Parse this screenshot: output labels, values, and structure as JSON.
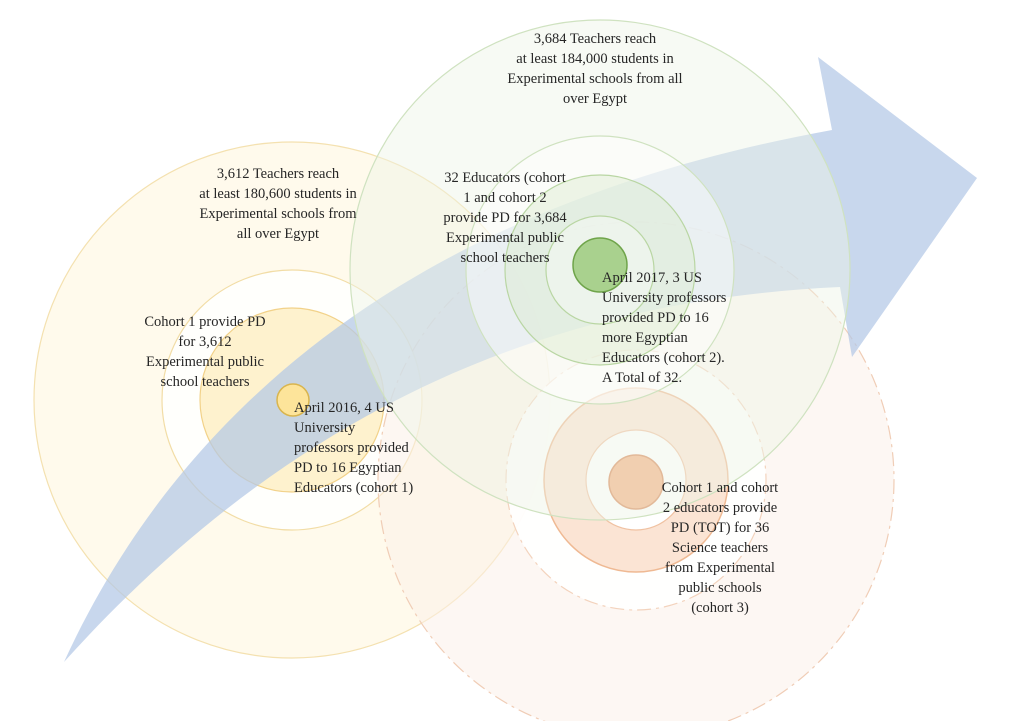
{
  "diagram": {
    "labels": {
      "top_2017": [
        "3,684 Teachers reach",
        "at least 184,000 students in",
        "Experimental schools from all",
        "over Egypt"
      ],
      "top_2016": [
        "3,612 Teachers reach",
        "at least 180,600 students in",
        "Experimental schools from",
        "all over Egypt"
      ],
      "educators_2017": [
        "32 Educators (cohort",
        "1 and cohort 2",
        "provide PD for 3,684",
        "Experimental public",
        "school teachers"
      ],
      "cohort1_pd": [
        "Cohort 1 provide PD",
        "for 3,612",
        "Experimental public",
        "school teachers"
      ],
      "april_2017": [
        "April 2017, 3 US",
        "University professors",
        "provided PD to 16",
        "more Egyptian",
        "Educators (cohort 2).",
        "A Total of 32."
      ],
      "april_2016": [
        "April 2016, 4 US",
        "University",
        "professors provided",
        "PD to 16 Egyptian",
        "Educators (cohort 1)"
      ],
      "cohort3": [
        "Cohort 1 and cohort",
        "2 educators provide",
        "PD (TOT) for 36",
        "Science teachers",
        "from Experimental",
        "public schools",
        "(cohort 3)"
      ]
    },
    "colors": {
      "arrow": "#b3c7e6",
      "yellow_fill": "#fff4d6",
      "yellow_ring": "#f2d99a",
      "yellow_core": "#fde49a",
      "green_fill": "#eef6e8",
      "green_ring": "#c7deb3",
      "green_core": "#a9d18e",
      "orange_fill": "#fcefe6",
      "orange_ring": "#f3c7a8",
      "orange_core": "#f4b183"
    }
  }
}
